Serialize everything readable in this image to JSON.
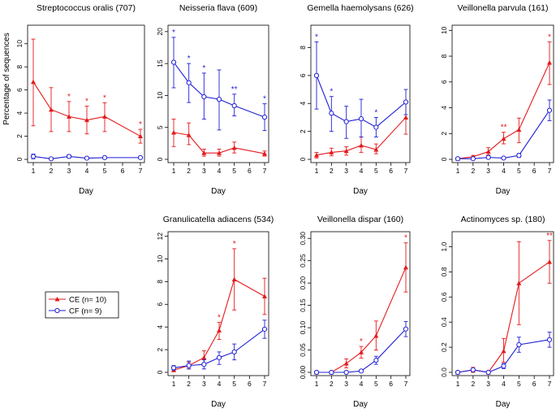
{
  "figure": {
    "ylabel": "Percentage of sequences",
    "xlabel": "Day",
    "legend": [
      {
        "label": "CE (n= 10)",
        "color": "#e41a1c",
        "marker": "triangle"
      },
      {
        "label": "CF (n= 9)",
        "color": "#1f1fd6",
        "marker": "circle"
      }
    ]
  },
  "chart_data": [
    {
      "type": "line",
      "title": "Streptococcus oralis (707)",
      "xlabel": "Day",
      "ylabel": "Percentage of sequences",
      "x": [
        1,
        2,
        3,
        4,
        5,
        7
      ],
      "xticks": [
        "1",
        "2",
        "3",
        "4",
        "5",
        "6",
        "7"
      ],
      "ylim": [
        0,
        11.6
      ],
      "yticks": [
        0,
        2,
        4,
        6,
        8,
        10
      ],
      "series": [
        {
          "name": "CE (n= 10)",
          "values": [
            6.7,
            4.3,
            3.7,
            3.4,
            3.7,
            2.0
          ],
          "err_low": [
            2.9,
            2.4,
            2.4,
            2.2,
            2.4,
            1.4
          ],
          "err_high": [
            10.4,
            6.2,
            5.0,
            4.6,
            4.9,
            2.6
          ]
        },
        {
          "name": "CF (n= 9)",
          "values": [
            0.25,
            0.05,
            0.25,
            0.1,
            0.15,
            0.15
          ],
          "err_low": [
            0.05,
            0.0,
            0.1,
            0.05,
            0.1,
            0.1
          ],
          "err_high": [
            0.45,
            0.1,
            0.4,
            0.15,
            0.2,
            0.2
          ]
        }
      ],
      "significance": [
        {
          "day": 3,
          "mark": "*"
        },
        {
          "day": 4,
          "mark": "*"
        },
        {
          "day": 5,
          "mark": "*"
        },
        {
          "day": 7,
          "mark": "*"
        }
      ]
    },
    {
      "type": "line",
      "title": "Neisseria flava (609)",
      "xlabel": "Day",
      "ylabel": "",
      "x": [
        1,
        2,
        3,
        4,
        5,
        7
      ],
      "xticks": [
        "1",
        "2",
        "3",
        "4",
        "5",
        "6",
        "7"
      ],
      "ylim": [
        0,
        21
      ],
      "yticks": [
        0,
        5,
        10,
        15,
        20
      ],
      "series": [
        {
          "name": "CE (n= 10)",
          "values": [
            4.2,
            3.8,
            1.0,
            1.0,
            1.8,
            0.9
          ],
          "err_low": [
            2.0,
            2.3,
            0.5,
            0.5,
            1.0,
            0.5
          ],
          "err_high": [
            6.3,
            5.7,
            1.6,
            1.6,
            2.7,
            1.3
          ]
        },
        {
          "name": "CF (n= 9)",
          "values": [
            15.2,
            12.0,
            9.8,
            9.4,
            8.4,
            6.6
          ],
          "err_low": [
            11.2,
            8.9,
            6.3,
            4.6,
            6.8,
            4.5
          ],
          "err_high": [
            19.1,
            15.0,
            13.5,
            14.0,
            10.2,
            8.7
          ]
        }
      ],
      "significance": [
        {
          "day": 1,
          "mark": "*"
        },
        {
          "day": 2,
          "mark": "*"
        },
        {
          "day": 3,
          "mark": "*"
        },
        {
          "day": 5,
          "mark": "**"
        },
        {
          "day": 7,
          "mark": "*"
        }
      ]
    },
    {
      "type": "line",
      "title": "Gemella haemolysans (626)",
      "xlabel": "Day",
      "ylabel": "",
      "x": [
        1,
        2,
        3,
        4,
        5,
        7
      ],
      "xticks": [
        "1",
        "2",
        "3",
        "4",
        "5",
        "6",
        "7"
      ],
      "ylim": [
        0,
        9.6
      ],
      "yticks": [
        0,
        2,
        4,
        6,
        8
      ],
      "series": [
        {
          "name": "CE (n= 10)",
          "values": [
            0.3,
            0.5,
            0.6,
            1.0,
            0.7,
            3.0
          ],
          "err_low": [
            0.1,
            0.25,
            0.3,
            0.5,
            0.4,
            1.8
          ],
          "err_high": [
            0.5,
            0.8,
            0.9,
            1.6,
            1.1,
            4.2
          ]
        },
        {
          "name": "CF (n= 9)",
          "values": [
            6.0,
            3.3,
            2.7,
            2.9,
            2.3,
            4.1
          ],
          "err_low": [
            3.6,
            2.0,
            1.5,
            1.6,
            1.6,
            3.2
          ],
          "err_high": [
            8.4,
            4.5,
            3.8,
            4.3,
            3.0,
            5.0
          ]
        }
      ],
      "significance": [
        {
          "day": 1,
          "mark": "*"
        },
        {
          "day": 2,
          "mark": "*"
        },
        {
          "day": 5,
          "mark": "*"
        }
      ]
    },
    {
      "type": "line",
      "title": "Veillonella parvula (161)",
      "xlabel": "Day",
      "ylabel": "",
      "x": [
        1,
        2,
        3,
        4,
        5,
        7
      ],
      "xticks": [
        "1",
        "2",
        "3",
        "4",
        "5",
        "6",
        "7"
      ],
      "ylim": [
        0,
        10.4
      ],
      "yticks": [
        0,
        2,
        4,
        6,
        8,
        10
      ],
      "series": [
        {
          "name": "CE (n= 10)",
          "values": [
            0.05,
            0.2,
            0.6,
            1.6,
            2.3,
            7.5
          ],
          "err_low": [
            0.0,
            0.1,
            0.35,
            1.2,
            1.3,
            5.8
          ],
          "err_high": [
            0.1,
            0.3,
            0.9,
            2.1,
            3.2,
            9.1
          ]
        },
        {
          "name": "CF (n= 9)",
          "values": [
            0.05,
            0.05,
            0.15,
            0.1,
            0.3,
            3.8
          ],
          "err_low": [
            0.0,
            0.0,
            0.05,
            0.05,
            0.15,
            3.0
          ],
          "err_high": [
            0.1,
            0.1,
            0.25,
            0.15,
            0.45,
            4.6
          ]
        }
      ],
      "significance": [
        {
          "day": 4,
          "mark": "**"
        },
        {
          "day": 7,
          "mark": "*"
        }
      ]
    },
    {
      "type": "line",
      "title": "Granulicatella adiacens (534)",
      "xlabel": "Day",
      "ylabel": "",
      "x": [
        1,
        2,
        3,
        4,
        5,
        7
      ],
      "xticks": [
        "1",
        "2",
        "3",
        "4",
        "5",
        "6",
        "7"
      ],
      "ylim": [
        0,
        12.4
      ],
      "yticks": [
        0,
        2,
        4,
        6,
        8,
        10,
        12
      ],
      "series": [
        {
          "name": "CE (n= 10)",
          "values": [
            0.2,
            0.6,
            1.3,
            3.7,
            8.2,
            6.7
          ],
          "err_low": [
            0.1,
            0.3,
            0.7,
            2.9,
            5.5,
            5.1
          ],
          "err_high": [
            0.3,
            0.9,
            1.9,
            4.4,
            10.9,
            8.3
          ]
        },
        {
          "name": "CF (n= 9)",
          "values": [
            0.4,
            0.6,
            0.7,
            1.3,
            1.8,
            3.8
          ],
          "err_low": [
            0.2,
            0.3,
            0.3,
            0.7,
            1.1,
            3.0
          ],
          "err_high": [
            0.6,
            1.0,
            1.1,
            1.8,
            2.5,
            4.6
          ]
        }
      ],
      "significance": [
        {
          "day": 4,
          "mark": "*"
        },
        {
          "day": 5,
          "mark": "*"
        }
      ]
    },
    {
      "type": "line",
      "title": "Veillonella dispar (160)",
      "xlabel": "Day",
      "ylabel": "",
      "x": [
        1,
        2,
        3,
        4,
        5,
        7
      ],
      "xticks": [
        "1",
        "2",
        "3",
        "4",
        "5",
        "6",
        "7"
      ],
      "ylim": [
        0,
        0.315
      ],
      "yticks": [
        0.0,
        0.05,
        0.1,
        0.15,
        0.2,
        0.25,
        0.3
      ],
      "series": [
        {
          "name": "CE (n= 10)",
          "values": [
            0.0,
            0.0,
            0.02,
            0.045,
            0.082,
            0.235
          ],
          "err_low": [
            0.0,
            0.0,
            0.01,
            0.032,
            0.05,
            0.18
          ],
          "err_high": [
            0.0,
            0.0,
            0.03,
            0.058,
            0.115,
            0.29
          ]
        },
        {
          "name": "CF (n= 9)",
          "values": [
            0.0,
            0.0,
            0.0,
            0.003,
            0.027,
            0.097
          ],
          "err_low": [
            0.0,
            0.0,
            0.0,
            0.0,
            0.018,
            0.08
          ],
          "err_high": [
            0.0,
            0.0,
            0.0,
            0.006,
            0.036,
            0.114
          ]
        }
      ],
      "significance": [
        {
          "day": 4,
          "mark": "*"
        },
        {
          "day": 7,
          "mark": "*"
        }
      ]
    },
    {
      "type": "line",
      "title": "Actinomyces sp. (180)",
      "xlabel": "Day",
      "ylabel": "",
      "x": [
        1,
        2,
        3,
        4,
        5,
        7
      ],
      "xticks": [
        "1",
        "2",
        "3",
        "4",
        "5",
        "6",
        "7"
      ],
      "ylim": [
        0,
        1.12
      ],
      "yticks": [
        0.0,
        0.2,
        0.4,
        0.6,
        0.8,
        1.0
      ],
      "series": [
        {
          "name": "CE (n= 10)",
          "values": [
            0.0,
            0.02,
            0.0,
            0.17,
            0.71,
            0.88
          ],
          "err_low": [
            0.0,
            0.0,
            0.0,
            0.08,
            0.38,
            0.71
          ],
          "err_high": [
            0.01,
            0.04,
            0.01,
            0.27,
            1.04,
            1.05
          ]
        },
        {
          "name": "CF (n= 9)",
          "values": [
            0.0,
            0.02,
            0.0,
            0.05,
            0.22,
            0.26
          ],
          "err_low": [
            0.0,
            0.01,
            0.0,
            0.03,
            0.16,
            0.2
          ],
          "err_high": [
            0.01,
            0.03,
            0.01,
            0.07,
            0.28,
            0.32
          ]
        }
      ],
      "significance": [
        {
          "day": 7,
          "mark": "**"
        }
      ]
    }
  ]
}
